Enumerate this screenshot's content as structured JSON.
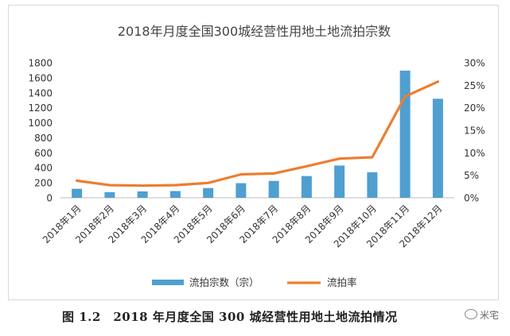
{
  "chart_data": {
    "type": "bar+line",
    "title": "2018年月度全国300城经营性用地土地流拍宗数",
    "categories": [
      "2018年1月",
      "2018年2月",
      "2018年3月",
      "2018年4月",
      "2018年5月",
      "2018年6月",
      "2018年7月",
      "2018年8月",
      "2018年9月",
      "2018年10月",
      "2018年11月",
      "2018年12月"
    ],
    "series": [
      {
        "name": "流拍宗数（宗）",
        "type": "bar",
        "axis": "left",
        "color": "#4f9fd0",
        "values": [
          120,
          75,
          85,
          90,
          130,
          195,
          225,
          290,
          430,
          340,
          1695,
          1320
        ]
      },
      {
        "name": "流拍率",
        "type": "line",
        "axis": "right",
        "color": "#ee7d31",
        "values": [
          3.8,
          2.8,
          2.7,
          2.8,
          3.3,
          5.2,
          5.4,
          7.0,
          8.7,
          9.0,
          22.5,
          25.8
        ]
      }
    ],
    "y_left": {
      "min": 0,
      "max": 1800,
      "ticks": [
        "0",
        "200",
        "400",
        "600",
        "800",
        "1000",
        "1200",
        "1400",
        "1600",
        "1800"
      ]
    },
    "y_right": {
      "min": 0,
      "max": 30,
      "ticks": [
        "0%",
        "5%",
        "10%",
        "15%",
        "20%",
        "25%",
        "30%"
      ]
    },
    "grid": false,
    "legend_position": "bottom"
  },
  "caption": "图 1.2　2018 年月度全国 300 城经营性用地土地流拍情况",
  "watermark": "米宅"
}
